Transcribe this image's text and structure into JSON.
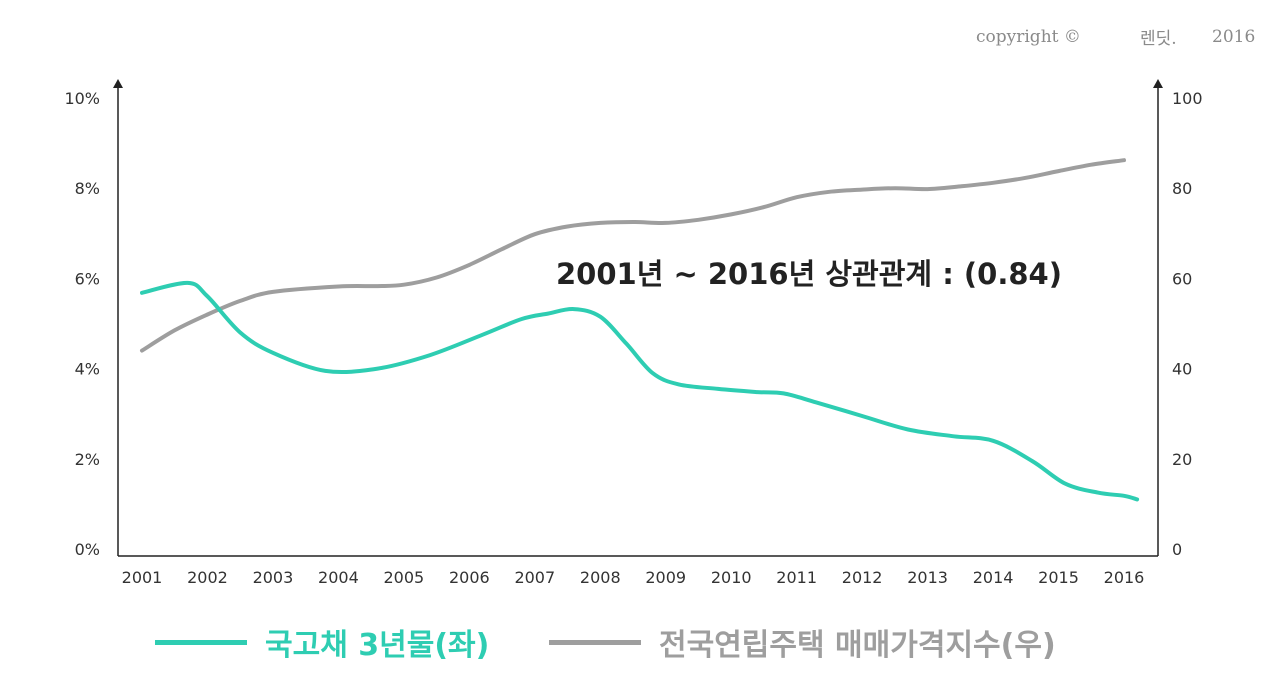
{
  "copyright": {
    "prefix": "copyright ©",
    "brand": "렌딧.",
    "year": "2016"
  },
  "colors": {
    "bond": "#2ECDB2",
    "housing": "#9E9E9E",
    "axis": "#222222",
    "text": "#333333",
    "brand": "#2ECDB2"
  },
  "chart_data": {
    "type": "line",
    "title": "",
    "annotation": "2001년 ~ 2016년 상관관계 : (0.84)",
    "x": [
      2001,
      2002,
      2003,
      2004,
      2005,
      2006,
      2007,
      2008,
      2009,
      2010,
      2011,
      2012,
      2013,
      2014,
      2015,
      2016
    ],
    "x_labels": [
      "2001",
      "2002",
      "2003",
      "2004",
      "2005",
      "2006",
      "2007",
      "2008",
      "2009",
      "2010",
      "2011",
      "2012",
      "2013",
      "2014",
      "2015",
      "2016"
    ],
    "y_left": {
      "range": [
        0,
        10
      ],
      "ticks": [
        0,
        2,
        4,
        6,
        8,
        10
      ],
      "tick_labels": [
        "0%",
        "2%",
        "4%",
        "6%",
        "8%",
        "10%"
      ]
    },
    "y_right": {
      "range": [
        0,
        100
      ],
      "ticks": [
        0,
        20,
        40,
        60,
        80,
        100
      ],
      "tick_labels": [
        "0",
        "20",
        "40",
        "60",
        "80",
        "100"
      ]
    },
    "series": [
      {
        "name": "국고채 3년물(좌)",
        "axis": "left",
        "color": "#2ECDB2",
        "points": [
          [
            2001,
            5.68
          ],
          [
            2001.7,
            5.9
          ],
          [
            2002,
            5.6
          ],
          [
            2002.5,
            4.8
          ],
          [
            2003,
            4.35
          ],
          [
            2003.8,
            3.95
          ],
          [
            2004.6,
            4.0
          ],
          [
            2005.4,
            4.3
          ],
          [
            2006.2,
            4.75
          ],
          [
            2006.8,
            5.1
          ],
          [
            2007.2,
            5.22
          ],
          [
            2007.6,
            5.32
          ],
          [
            2008,
            5.15
          ],
          [
            2008.4,
            4.55
          ],
          [
            2008.8,
            3.9
          ],
          [
            2009.2,
            3.65
          ],
          [
            2009.8,
            3.55
          ],
          [
            2010.4,
            3.48
          ],
          [
            2010.8,
            3.45
          ],
          [
            2011.3,
            3.25
          ],
          [
            2012,
            2.95
          ],
          [
            2012.7,
            2.65
          ],
          [
            2013.4,
            2.5
          ],
          [
            2014,
            2.4
          ],
          [
            2014.6,
            1.95
          ],
          [
            2015.1,
            1.45
          ],
          [
            2015.6,
            1.25
          ],
          [
            2016,
            1.18
          ],
          [
            2016.2,
            1.1
          ]
        ]
      },
      {
        "name": "전국연립주택 매매가격지수(우)",
        "axis": "right",
        "color": "#9E9E9E",
        "points": [
          [
            2001,
            44
          ],
          [
            2001.5,
            48.5
          ],
          [
            2002,
            52
          ],
          [
            2002.5,
            55
          ],
          [
            2003,
            57
          ],
          [
            2004,
            58.2
          ],
          [
            2004.6,
            58.3
          ],
          [
            2005,
            58.6
          ],
          [
            2005.5,
            60.2
          ],
          [
            2006,
            63
          ],
          [
            2006.5,
            66.5
          ],
          [
            2007,
            69.8
          ],
          [
            2007.5,
            71.5
          ],
          [
            2008,
            72.3
          ],
          [
            2008.5,
            72.5
          ],
          [
            2009,
            72.3
          ],
          [
            2009.5,
            73
          ],
          [
            2010,
            74.2
          ],
          [
            2010.5,
            75.8
          ],
          [
            2011,
            78
          ],
          [
            2011.5,
            79.2
          ],
          [
            2012,
            79.7
          ],
          [
            2012.5,
            80
          ],
          [
            2013,
            79.8
          ],
          [
            2013.5,
            80.4
          ],
          [
            2014,
            81.2
          ],
          [
            2014.5,
            82.3
          ],
          [
            2015,
            83.8
          ],
          [
            2015.5,
            85.2
          ],
          [
            2016,
            86.2
          ]
        ]
      }
    ]
  }
}
